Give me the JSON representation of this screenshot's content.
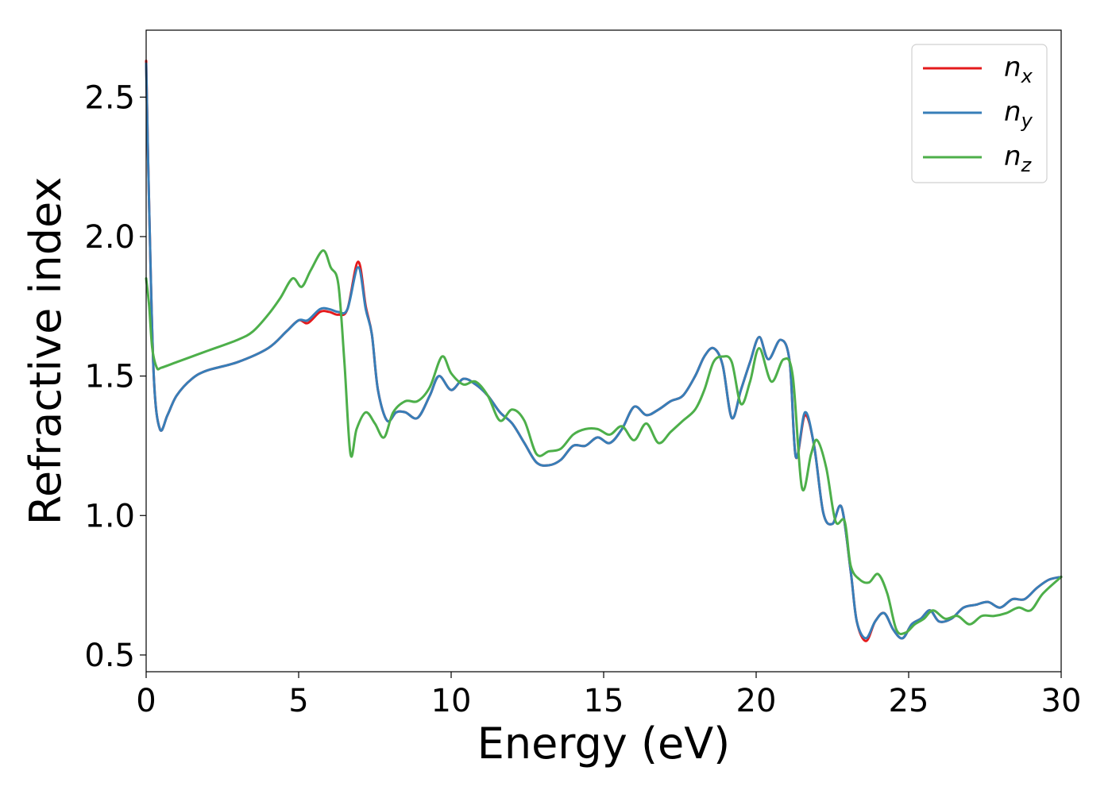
{
  "chart_data": {
    "type": "line",
    "title": "",
    "xlabel": "Energy (eV)",
    "ylabel": "Refractive index",
    "xlim": [
      0,
      30
    ],
    "ylim": [
      0.44,
      2.74
    ],
    "xticks": [
      0,
      5,
      10,
      15,
      20,
      25,
      30
    ],
    "xtick_labels": [
      "0",
      "5",
      "10",
      "15",
      "20",
      "25",
      "30"
    ],
    "yticks": [
      0.5,
      1.0,
      1.5,
      2.0,
      2.5
    ],
    "ytick_labels": [
      "0.5",
      "1.0",
      "1.5",
      "2.0",
      "2.5"
    ],
    "grid": false,
    "legend_position": "top-right",
    "series": [
      {
        "name": "n",
        "subscript": "x",
        "color": "#e41a1c",
        "x": [
          0,
          0.1,
          0.25,
          0.45,
          0.7,
          1.0,
          1.5,
          2.0,
          3.0,
          4.0,
          4.6,
          5.0,
          5.3,
          5.7,
          6.0,
          6.3,
          6.6,
          6.95,
          7.2,
          7.4,
          7.6,
          7.9,
          8.2,
          8.5,
          8.9,
          9.3,
          9.6,
          10.0,
          10.4,
          10.8,
          11.2,
          11.6,
          12.0,
          12.4,
          12.8,
          13.2,
          13.6,
          14.0,
          14.4,
          14.8,
          15.2,
          15.6,
          16.0,
          16.4,
          16.8,
          17.2,
          17.6,
          18.0,
          18.3,
          18.6,
          18.9,
          19.2,
          19.5,
          19.8,
          20.1,
          20.4,
          20.8,
          21.1,
          21.3,
          21.6,
          21.9,
          22.2,
          22.5,
          22.8,
          23.1,
          23.3,
          23.6,
          23.9,
          24.2,
          24.5,
          24.8,
          25.1,
          25.4,
          25.7,
          26.0,
          26.4,
          26.8,
          27.2,
          27.6,
          28.0,
          28.4,
          28.8,
          29.2,
          29.6,
          30.0
        ],
        "y": [
          2.63,
          2.1,
          1.5,
          1.31,
          1.36,
          1.43,
          1.49,
          1.52,
          1.55,
          1.6,
          1.66,
          1.7,
          1.69,
          1.73,
          1.73,
          1.72,
          1.74,
          1.91,
          1.75,
          1.65,
          1.45,
          1.34,
          1.37,
          1.37,
          1.35,
          1.43,
          1.5,
          1.45,
          1.49,
          1.47,
          1.43,
          1.37,
          1.33,
          1.26,
          1.19,
          1.18,
          1.2,
          1.25,
          1.25,
          1.28,
          1.26,
          1.31,
          1.39,
          1.36,
          1.38,
          1.41,
          1.43,
          1.5,
          1.57,
          1.6,
          1.54,
          1.35,
          1.45,
          1.55,
          1.64,
          1.56,
          1.63,
          1.55,
          1.21,
          1.36,
          1.25,
          1.01,
          0.97,
          1.03,
          0.8,
          0.62,
          0.55,
          0.62,
          0.65,
          0.59,
          0.56,
          0.61,
          0.63,
          0.66,
          0.62,
          0.63,
          0.67,
          0.68,
          0.69,
          0.67,
          0.7,
          0.7,
          0.74,
          0.77,
          0.78
        ]
      },
      {
        "name": "n",
        "subscript": "y",
        "color": "#377eb8",
        "x": [
          0,
          0.1,
          0.25,
          0.45,
          0.7,
          1.0,
          1.5,
          2.0,
          3.0,
          4.0,
          4.6,
          5.0,
          5.3,
          5.7,
          6.0,
          6.3,
          6.6,
          6.95,
          7.2,
          7.4,
          7.6,
          7.9,
          8.2,
          8.5,
          8.9,
          9.3,
          9.6,
          10.0,
          10.4,
          10.8,
          11.2,
          11.6,
          12.0,
          12.4,
          12.8,
          13.2,
          13.6,
          14.0,
          14.4,
          14.8,
          15.2,
          15.6,
          16.0,
          16.4,
          16.8,
          17.2,
          17.6,
          18.0,
          18.3,
          18.6,
          18.9,
          19.2,
          19.5,
          19.8,
          20.1,
          20.4,
          20.8,
          21.1,
          21.3,
          21.6,
          21.9,
          22.2,
          22.5,
          22.8,
          23.1,
          23.3,
          23.6,
          23.9,
          24.2,
          24.5,
          24.8,
          25.1,
          25.4,
          25.7,
          26.0,
          26.4,
          26.8,
          27.2,
          27.6,
          28.0,
          28.4,
          28.8,
          29.2,
          29.6,
          30.0
        ],
        "y": [
          2.62,
          2.1,
          1.5,
          1.31,
          1.36,
          1.43,
          1.49,
          1.52,
          1.55,
          1.6,
          1.66,
          1.7,
          1.7,
          1.74,
          1.74,
          1.73,
          1.74,
          1.89,
          1.74,
          1.65,
          1.45,
          1.34,
          1.37,
          1.37,
          1.35,
          1.43,
          1.5,
          1.45,
          1.49,
          1.47,
          1.43,
          1.37,
          1.33,
          1.26,
          1.19,
          1.18,
          1.2,
          1.25,
          1.25,
          1.28,
          1.26,
          1.31,
          1.39,
          1.36,
          1.38,
          1.41,
          1.43,
          1.5,
          1.57,
          1.6,
          1.54,
          1.35,
          1.45,
          1.55,
          1.64,
          1.56,
          1.63,
          1.55,
          1.21,
          1.37,
          1.25,
          1.01,
          0.97,
          1.03,
          0.8,
          0.62,
          0.56,
          0.62,
          0.65,
          0.59,
          0.56,
          0.61,
          0.63,
          0.66,
          0.62,
          0.63,
          0.67,
          0.68,
          0.69,
          0.67,
          0.7,
          0.7,
          0.74,
          0.77,
          0.78
        ]
      },
      {
        "name": "n",
        "subscript": "z",
        "color": "#4daf4a",
        "x": [
          0,
          0.1,
          0.2,
          0.35,
          0.5,
          1.0,
          1.5,
          2.0,
          3.0,
          3.5,
          4.0,
          4.4,
          4.8,
          5.1,
          5.4,
          5.8,
          6.05,
          6.3,
          6.5,
          6.7,
          6.9,
          7.2,
          7.5,
          7.8,
          8.1,
          8.5,
          8.9,
          9.3,
          9.7,
          10.0,
          10.4,
          10.8,
          11.2,
          11.6,
          12.0,
          12.4,
          12.8,
          13.2,
          13.6,
          14.0,
          14.4,
          14.8,
          15.2,
          15.6,
          16.0,
          16.4,
          16.8,
          17.2,
          17.6,
          18.0,
          18.3,
          18.6,
          18.9,
          19.2,
          19.5,
          19.8,
          20.1,
          20.5,
          20.9,
          21.2,
          21.5,
          21.8,
          22.0,
          22.3,
          22.6,
          22.9,
          23.1,
          23.4,
          23.7,
          24.0,
          24.3,
          24.6,
          24.9,
          25.2,
          25.5,
          25.8,
          26.2,
          26.6,
          27.0,
          27.4,
          27.8,
          28.2,
          28.6,
          29.0,
          29.4,
          30.0
        ],
        "y": [
          1.85,
          1.75,
          1.6,
          1.53,
          1.53,
          1.55,
          1.57,
          1.59,
          1.63,
          1.66,
          1.72,
          1.78,
          1.85,
          1.82,
          1.88,
          1.95,
          1.89,
          1.83,
          1.55,
          1.22,
          1.31,
          1.37,
          1.33,
          1.28,
          1.37,
          1.41,
          1.41,
          1.46,
          1.57,
          1.51,
          1.47,
          1.48,
          1.43,
          1.34,
          1.38,
          1.34,
          1.22,
          1.23,
          1.24,
          1.29,
          1.31,
          1.31,
          1.29,
          1.32,
          1.27,
          1.33,
          1.26,
          1.3,
          1.34,
          1.38,
          1.45,
          1.55,
          1.57,
          1.55,
          1.4,
          1.48,
          1.6,
          1.48,
          1.56,
          1.5,
          1.1,
          1.22,
          1.27,
          1.17,
          0.98,
          0.98,
          0.82,
          0.77,
          0.76,
          0.79,
          0.72,
          0.59,
          0.58,
          0.61,
          0.63,
          0.66,
          0.63,
          0.64,
          0.61,
          0.64,
          0.64,
          0.65,
          0.67,
          0.66,
          0.72,
          0.78
        ]
      }
    ]
  }
}
